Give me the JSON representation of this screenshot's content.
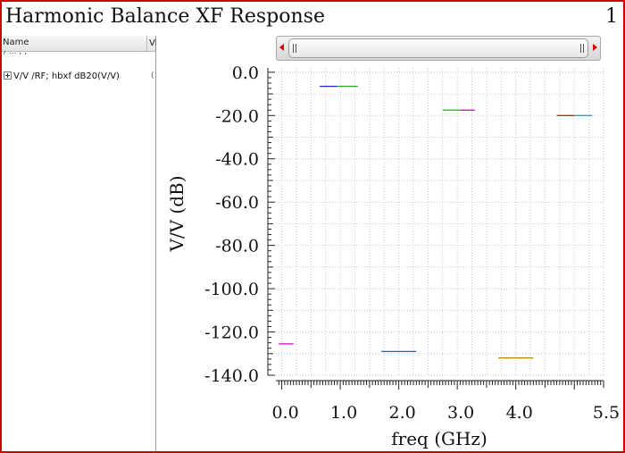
{
  "window": {
    "title": "Harmonic Balance XF Response",
    "chart_number": "1"
  },
  "left_panel": {
    "columns": [
      "Name",
      "Vi"
    ],
    "partial_row_text": "/ ... ; ;",
    "signal_label": "V/V /RF; hbxf dB20(V/V)",
    "row_marker": "("
  },
  "scrollbar": {
    "left_arrow_color": "#cc0000",
    "right_arrow_color": "#cc0000"
  },
  "chart_data": {
    "type": "line",
    "title": "",
    "xlabel": "freq (GHz)",
    "ylabel": "V/V (dB)",
    "xlim": [
      -0.1,
      5.5
    ],
    "ylim": [
      -140,
      2
    ],
    "x_tick_labels": [
      "0.0",
      "1.0",
      "2.0",
      "3.0",
      "4.0",
      "5.5"
    ],
    "x_tick_values": [
      0.0,
      1.0,
      2.0,
      3.0,
      4.0,
      5.5
    ],
    "y_tick_labels": [
      "0.0",
      "-20.0",
      "-40.0",
      "-60.0",
      "-80.0",
      "-100.0",
      "-120.0",
      "-140.0"
    ],
    "y_tick_values": [
      0,
      -20,
      -40,
      -60,
      -80,
      -100,
      -120,
      -140
    ],
    "grid": true,
    "series": [
      {
        "color": "#cc00cc",
        "x": [
          -0.05,
          0.2
        ],
        "y": [
          -125.5,
          -125.5
        ]
      },
      {
        "color": "#2222cc",
        "x": [
          0.65,
          0.95
        ],
        "y": [
          -6.5,
          -6.5
        ]
      },
      {
        "color": "#22aa22",
        "x": [
          0.95,
          1.3
        ],
        "y": [
          -6.5,
          -6.5
        ]
      },
      {
        "color": "#2266cc",
        "x": [
          1.7,
          2.3
        ],
        "y": [
          -129,
          -129
        ]
      },
      {
        "color": "#22aa22",
        "x": [
          2.75,
          3.05
        ],
        "y": [
          -17.5,
          -17.5
        ]
      },
      {
        "color": "#cc00cc",
        "x": [
          3.05,
          3.3
        ],
        "y": [
          -17.5,
          -17.5
        ]
      },
      {
        "color": "#aa8800",
        "x": [
          3.7,
          4.3
        ],
        "y": [
          -132,
          -132
        ]
      },
      {
        "color": "#cc2222",
        "x": [
          4.7,
          5.0
        ],
        "y": [
          -20,
          -20
        ]
      },
      {
        "color": "#22aaaa",
        "x": [
          5.0,
          5.3
        ],
        "y": [
          -20,
          -20
        ]
      }
    ]
  }
}
